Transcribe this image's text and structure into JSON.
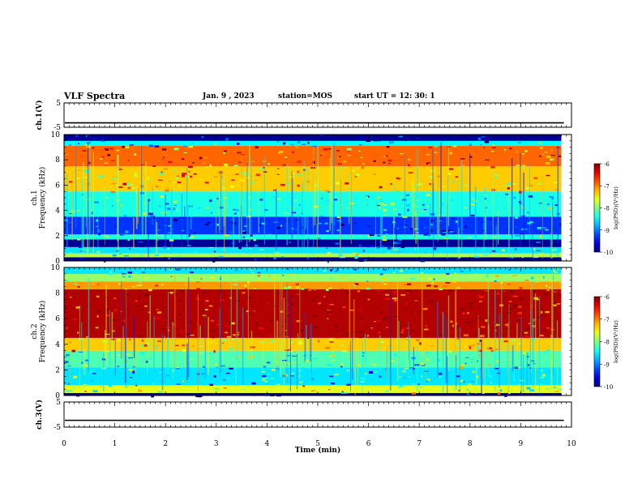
{
  "header": {
    "title": "VLF Spectra",
    "date": "Jan. 9 , 2023",
    "station": "station=MOS",
    "start_ut": "start UT =  12: 30: 1"
  },
  "chart_data": [
    {
      "type": "line",
      "panel": "ch1-voltage",
      "ylabel": "ch.1(V)",
      "yticks": [
        "5",
        "-5"
      ],
      "ylim": [
        -5,
        5
      ],
      "xlim": [
        0,
        10
      ],
      "level": -3.2,
      "grid": false
    },
    {
      "type": "heatmap",
      "panel": "ch1-spectrogram",
      "ylabel": "ch.1 Frequency (kHz)",
      "ylabel_lines": [
        "ch.1",
        "Frequency (kHz)"
      ],
      "yticks": [
        "0",
        "2",
        "4",
        "6",
        "8",
        "10"
      ],
      "ylim": [
        0,
        10
      ],
      "xlim": [
        0,
        9.8
      ],
      "colorbar": {
        "label": "log(PSD)(V²/Hz)",
        "ticks": [
          "-6",
          "-7",
          "-8",
          "-9",
          "-10"
        ],
        "range": [
          -10,
          -6
        ]
      },
      "bands": [
        {
          "f": [
            0.0,
            0.3
          ],
          "v": -10.0
        },
        {
          "f": [
            0.3,
            0.6
          ],
          "v": -7.8
        },
        {
          "f": [
            0.6,
            1.1
          ],
          "v": -8.6
        },
        {
          "f": [
            1.1,
            1.7
          ],
          "v": -9.9
        },
        {
          "f": [
            1.7,
            2.1
          ],
          "v": -8.4
        },
        {
          "f": [
            2.1,
            3.5
          ],
          "v": -9.3
        },
        {
          "f": [
            3.5,
            5.5
          ],
          "v": -8.4
        },
        {
          "f": [
            5.5,
            7.5
          ],
          "v": -7.3
        },
        {
          "f": [
            7.5,
            9.1
          ],
          "v": -6.9
        },
        {
          "f": [
            9.1,
            9.5
          ],
          "v": -8.5
        },
        {
          "f": [
            9.5,
            10.0
          ],
          "v": -9.9
        }
      ]
    },
    {
      "type": "heatmap",
      "panel": "ch2-spectrogram",
      "ylabel": "ch.2 Frequency (kHz)",
      "ylabel_lines": [
        "ch.2",
        "Frequency (kHz)"
      ],
      "yticks": [
        "0",
        "2",
        "4",
        "6",
        "8",
        "10"
      ],
      "ylim": [
        0,
        10
      ],
      "xlim": [
        0,
        9.8
      ],
      "colorbar": {
        "label": "log(PSD)(V²/Hz)",
        "ticks": [
          "-6",
          "-7",
          "-8",
          "-9",
          "-10"
        ],
        "range": [
          -10,
          -6
        ]
      },
      "bands": [
        {
          "f": [
            0.0,
            0.2
          ],
          "v": -9.9
        },
        {
          "f": [
            0.2,
            0.8
          ],
          "v": -7.6
        },
        {
          "f": [
            0.8,
            2.2
          ],
          "v": -8.6
        },
        {
          "f": [
            2.2,
            3.5
          ],
          "v": -8.2
        },
        {
          "f": [
            3.5,
            4.5
          ],
          "v": -7.3
        },
        {
          "f": [
            4.5,
            8.3
          ],
          "v": -6.2
        },
        {
          "f": [
            8.3,
            8.9
          ],
          "v": -7.1
        },
        {
          "f": [
            8.9,
            9.5
          ],
          "v": -7.9
        },
        {
          "f": [
            9.5,
            10.0
          ],
          "v": -8.6
        }
      ]
    },
    {
      "type": "line",
      "panel": "ch3-voltage",
      "ylabel": "ch.3(V)",
      "yticks": [
        "5",
        "-5"
      ],
      "ylim": [
        -5,
        5
      ],
      "xlim": [
        0,
        10
      ],
      "level": -2.3,
      "grid": false
    }
  ],
  "x_axis": {
    "label": "Time (min)",
    "ticks": [
      "0",
      "1",
      "2",
      "3",
      "4",
      "5",
      "6",
      "7",
      "8",
      "9",
      "10"
    ],
    "range": [
      0,
      10
    ]
  }
}
